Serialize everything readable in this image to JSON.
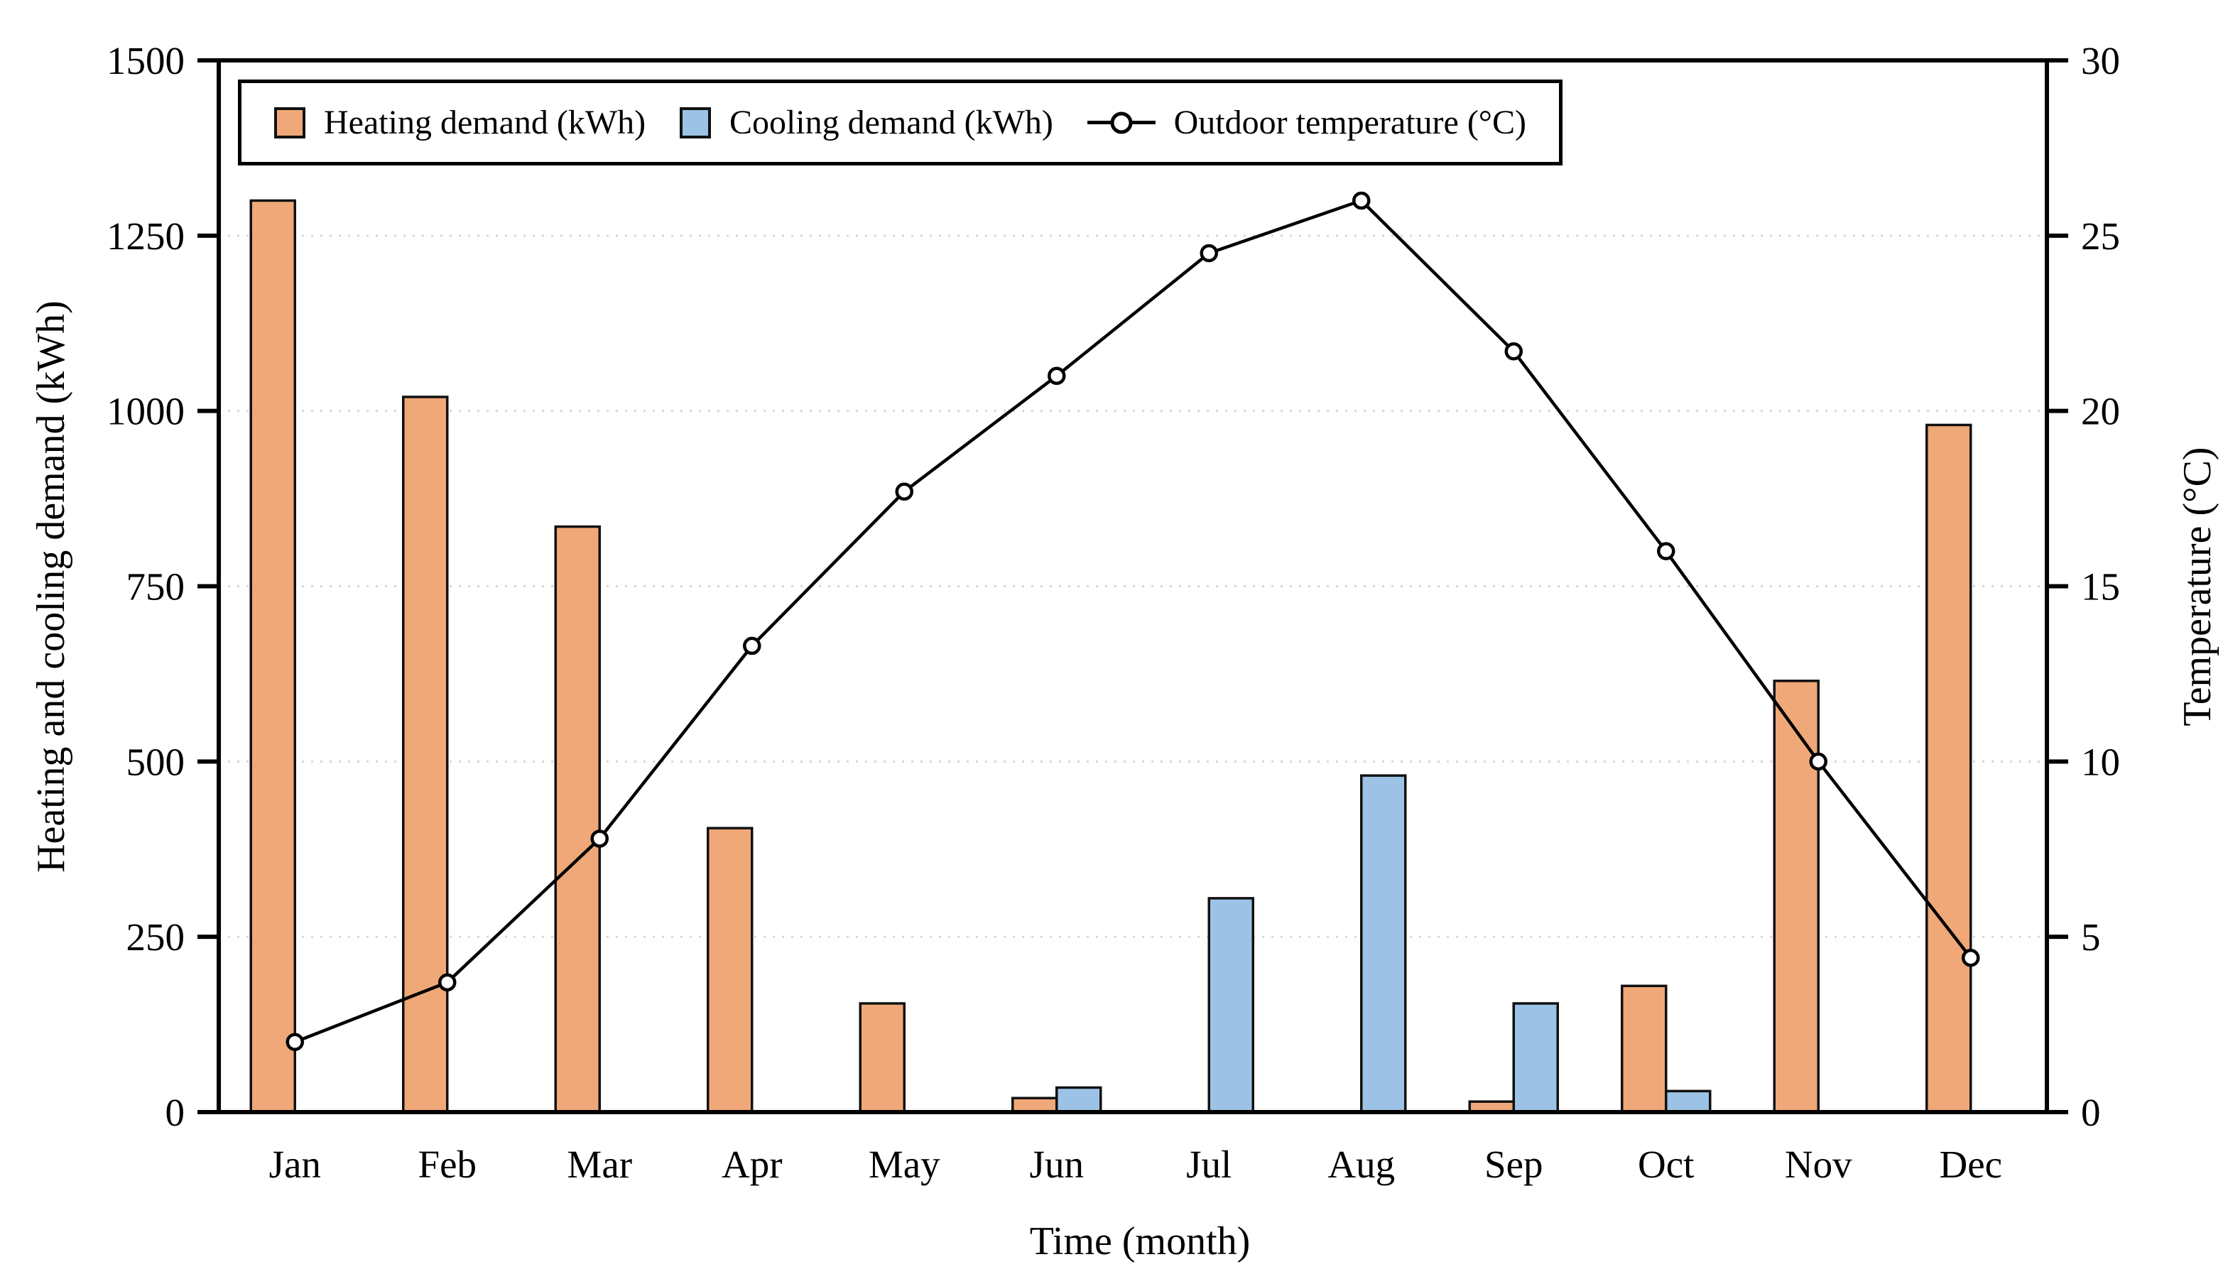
{
  "chart_data": {
    "type": "bar",
    "subtype": "grouped-bars-with-secondary-axis-line",
    "title": "",
    "categories": [
      "Jan",
      "Feb",
      "Mar",
      "Apr",
      "May",
      "Jun",
      "Jul",
      "Aug",
      "Sep",
      "Oct",
      "Nov",
      "Dec"
    ],
    "series": [
      {
        "name": "Heating demand (kWh)",
        "type": "bar",
        "axis": "left",
        "color": "#F0A878",
        "values": [
          1300,
          1020,
          835,
          405,
          155,
          20,
          0,
          0,
          15,
          180,
          615,
          980
        ]
      },
      {
        "name": "Cooling demand (kWh)",
        "type": "bar",
        "axis": "left",
        "color": "#9CC3E5",
        "values": [
          0,
          0,
          0,
          0,
          0,
          35,
          305,
          480,
          155,
          30,
          0,
          0
        ]
      },
      {
        "name": "Outdoor temperature (°C)",
        "type": "line",
        "axis": "right",
        "color": "#000000",
        "marker": "open-circle",
        "values": [
          2.0,
          3.7,
          7.8,
          13.3,
          17.7,
          21.0,
          24.5,
          26.0,
          21.7,
          16.0,
          10.0,
          4.4
        ]
      }
    ],
    "xlabel": "Time (month)",
    "ylabel_left": "Heating and cooling demand (kWh)",
    "ylabel_right": "Temperature (°C)",
    "ylim_left": [
      0,
      1500
    ],
    "yticks_left": [
      "0",
      "250",
      "500",
      "750",
      "1000",
      "1250",
      "1500"
    ],
    "ylim_right": [
      0,
      30
    ],
    "yticks_right": [
      "0",
      "5",
      "10",
      "15",
      "20",
      "25",
      "30"
    ],
    "grid": "horizontal dotted gridlines at interior left-axis majors (250-1250), no vertical grid",
    "legend_position": "top-left inside plot, horizontal row, boxed",
    "axis_color": "#000000",
    "bar_outline_color": "#111111",
    "gridline_color": "#D6D6D6",
    "background": "#FFFFFF"
  }
}
